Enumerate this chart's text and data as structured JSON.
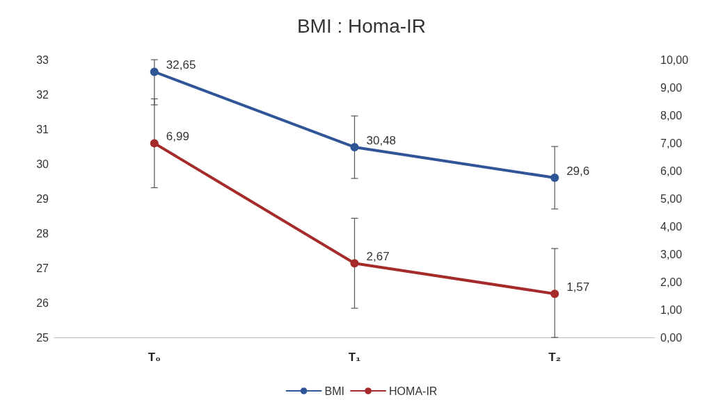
{
  "chart_data": {
    "type": "line",
    "title": "BMI : Homa-IR",
    "categories": [
      "T₀",
      "T₁",
      "T₂"
    ],
    "series": [
      {
        "name": "BMI",
        "color": "#2f5597",
        "values": [
          32.65,
          30.48,
          29.6
        ],
        "value_labels": [
          "32,65",
          "30,48",
          "29,6"
        ],
        "errors": [
          [
            31.7,
            33
          ],
          0.9,
          0.9
        ]
      },
      {
        "name": "HOMA-IR",
        "color": "#a52a2a",
        "axis": "y2",
        "values": [
          6.99,
          2.67,
          1.57
        ],
        "value_labels": [
          "6,99",
          "2,67",
          "1,57"
        ],
        "errors": [
          1.6,
          1.62,
          [
            0,
            3.2
          ]
        ]
      }
    ],
    "ylim": [
      25,
      33
    ],
    "yticks": [
      25,
      26,
      27,
      28,
      29,
      30,
      31,
      32,
      33
    ],
    "y2lim": [
      0,
      10
    ],
    "y2ticks": [
      {
        "value": 0,
        "label": "0,00"
      },
      {
        "value": 1,
        "label": "1,00"
      },
      {
        "value": 2,
        "label": "2,00"
      },
      {
        "value": 3,
        "label": "3,00"
      },
      {
        "value": 4,
        "label": "4,00"
      },
      {
        "value": 5,
        "label": "5,00"
      },
      {
        "value": 6,
        "label": "6,00"
      },
      {
        "value": 7,
        "label": "7,00"
      },
      {
        "value": 8,
        "label": "8,00"
      },
      {
        "value": 9,
        "label": "9,00"
      },
      {
        "value": 10,
        "label": "10,00"
      }
    ],
    "marker": "circle",
    "line_style": "solid",
    "grid": false,
    "legend": "bottom"
  }
}
